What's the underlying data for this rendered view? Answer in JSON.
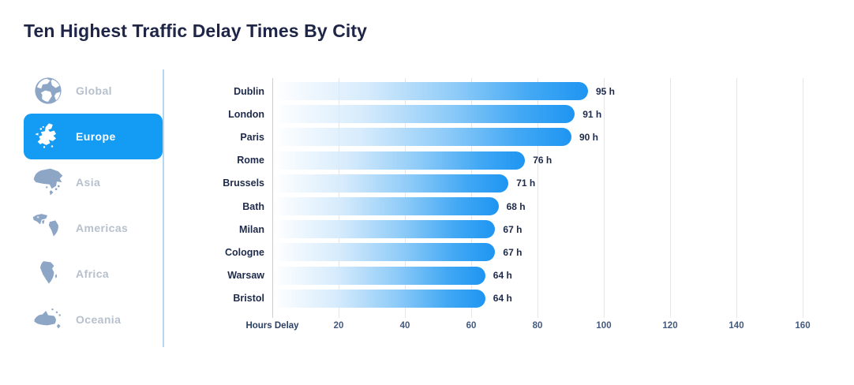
{
  "title": "Ten Highest Traffic Delay Times By City",
  "sidebar": {
    "active_color": "#149bf3",
    "inactive_label_color": "#b7c0cd",
    "icon_color": "#8da6c6",
    "items": [
      {
        "label": "Global",
        "icon": "globe-icon",
        "active": false
      },
      {
        "label": "Europe",
        "icon": "europe-map-icon",
        "active": true
      },
      {
        "label": "Asia",
        "icon": "asia-map-icon",
        "active": false
      },
      {
        "label": "Americas",
        "icon": "americas-map-icon",
        "active": false
      },
      {
        "label": "Africa",
        "icon": "africa-map-icon",
        "active": false
      },
      {
        "label": "Oceania",
        "icon": "oceania-map-icon",
        "active": false
      }
    ]
  },
  "chart_data": {
    "type": "bar",
    "orientation": "horizontal",
    "title": "Ten Highest Traffic Delay Times By City",
    "categories": [
      "Dublin",
      "London",
      "Paris",
      "Rome",
      "Brussels",
      "Bath",
      "Milan",
      "Cologne",
      "Warsaw",
      "Bristol"
    ],
    "values": [
      95,
      91,
      90,
      76,
      71,
      68,
      67,
      67,
      64,
      64
    ],
    "value_labels": [
      "95 h",
      "91 h",
      "90 h",
      "76 h",
      "71 h",
      "68 h",
      "67 h",
      "67 h",
      "64 h",
      "64 h"
    ],
    "xlabel": "Hours Delay",
    "ylabel": "",
    "xlim": [
      0,
      160
    ],
    "xticks": [
      20,
      40,
      60,
      80,
      100,
      120,
      140,
      160
    ],
    "grid": true,
    "legend": "none",
    "bar_gradient_start": "#ffffff",
    "bar_gradient_end": "#1e95f2",
    "label_color": "#1e2a4a"
  }
}
